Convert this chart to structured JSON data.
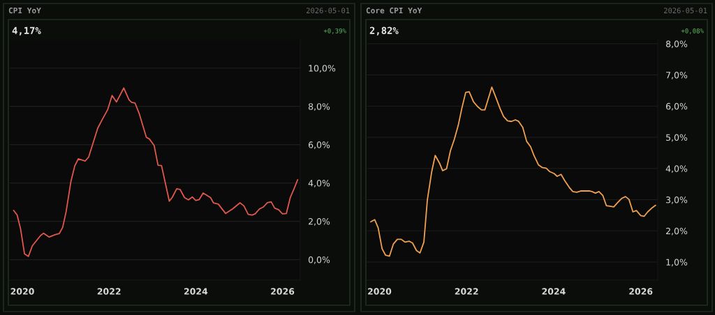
{
  "chart_data": [
    {
      "type": "line",
      "title": "CPI YoY",
      "annotations": [
        "2026-05-01",
        "4,17%",
        "+0,39%"
      ],
      "x": [
        2019.8,
        2019.88,
        2019.96,
        2020.05,
        2020.14,
        2020.23,
        2020.42,
        2020.49,
        2020.62,
        2020.75,
        2020.85,
        2020.93,
        2021.01,
        2021.12,
        2021.21,
        2021.29,
        2021.45,
        2021.53,
        2021.64,
        2021.74,
        2021.84,
        2021.97,
        2022.07,
        2022.17,
        2022.34,
        2022.46,
        2022.52,
        2022.6,
        2022.7,
        2022.86,
        2022.93,
        2023.04,
        2023.13,
        2023.21,
        2023.39,
        2023.46,
        2023.56,
        2023.64,
        2023.74,
        2023.83,
        2023.92,
        2024.0,
        2024.08,
        2024.17,
        2024.34,
        2024.41,
        2024.52,
        2024.69,
        2024.85,
        2025.02,
        2025.11,
        2025.21,
        2025.3,
        2025.37,
        2025.47,
        2025.56,
        2025.65,
        2025.74,
        2025.82,
        2025.91,
        2026.0,
        2026.09,
        2026.18,
        2026.26,
        2026.35
      ],
      "series": [
        {
          "color": "#e0584c",
          "values": [
            2.57,
            2.33,
            1.6,
            0.3,
            0.17,
            0.72,
            1.26,
            1.38,
            1.18,
            1.3,
            1.36,
            1.68,
            2.51,
            4.08,
            4.9,
            5.26,
            5.15,
            5.36,
            6.15,
            6.87,
            7.3,
            7.84,
            8.57,
            8.23,
            8.96,
            8.35,
            8.21,
            8.17,
            7.6,
            6.39,
            6.3,
            5.96,
            4.93,
            4.91,
            3.05,
            3.26,
            3.7,
            3.66,
            3.24,
            3.12,
            3.27,
            3.09,
            3.14,
            3.48,
            3.24,
            2.96,
            2.9,
            2.41,
            2.65,
            2.97,
            2.81,
            2.36,
            2.33,
            2.39,
            2.65,
            2.75,
            2.97,
            3.02,
            2.69,
            2.61,
            2.39,
            2.41,
            3.24,
            3.66,
            4.17
          ]
        }
      ],
      "xlim": [
        2019.71,
        2026.41
      ],
      "xticks": [
        2020,
        2022,
        2024,
        2026
      ],
      "ylim": [
        -1.07,
        11.48
      ],
      "yticks": [
        {
          "value": 0,
          "label": "0,0%"
        },
        {
          "value": 2,
          "label": "2,0%"
        },
        {
          "value": 4,
          "label": "4,0%"
        },
        {
          "value": 6,
          "label": "6,0%"
        },
        {
          "value": 8,
          "label": "8,0%"
        },
        {
          "value": 10,
          "label": "10,0%"
        }
      ],
      "grid": "y",
      "line_style": "solid",
      "marker": "none"
    },
    {
      "type": "line",
      "title": "Core CPI YoY",
      "annotations": [
        "2026-05-01",
        "2,82%",
        "+0,08%"
      ],
      "x": [
        2019.8,
        2019.89,
        2019.97,
        2020.06,
        2020.14,
        2020.23,
        2020.32,
        2020.41,
        2020.5,
        2020.59,
        2020.68,
        2020.76,
        2020.85,
        2020.93,
        2021.02,
        2021.1,
        2021.2,
        2021.28,
        2021.38,
        2021.45,
        2021.54,
        2021.63,
        2021.72,
        2021.81,
        2021.89,
        2021.98,
        2022.06,
        2022.16,
        2022.25,
        2022.34,
        2022.42,
        2022.58,
        2022.67,
        2022.77,
        2022.85,
        2022.94,
        2023.03,
        2023.12,
        2023.19,
        2023.29,
        2023.38,
        2023.47,
        2023.55,
        2023.65,
        2023.74,
        2023.83,
        2023.91,
        2024.01,
        2024.08,
        2024.17,
        2024.26,
        2024.36,
        2024.44,
        2024.53,
        2024.62,
        2024.83,
        2024.88,
        2024.96,
        2025.04,
        2025.13,
        2025.21,
        2025.29,
        2025.38,
        2025.47,
        2025.56,
        2025.65,
        2025.73,
        2025.82,
        2025.9,
        2026.0,
        2026.08,
        2026.16,
        2026.26,
        2026.34
      ],
      "series": [
        {
          "color": "#f0a04e",
          "values": [
            2.29,
            2.36,
            2.1,
            1.43,
            1.22,
            1.19,
            1.58,
            1.73,
            1.73,
            1.64,
            1.67,
            1.61,
            1.37,
            1.29,
            1.64,
            3.0,
            3.9,
            4.42,
            4.17,
            3.93,
            3.99,
            4.57,
            4.94,
            5.39,
            5.92,
            6.44,
            6.46,
            6.14,
            5.99,
            5.88,
            5.88,
            6.61,
            6.29,
            5.92,
            5.67,
            5.53,
            5.51,
            5.56,
            5.52,
            5.32,
            4.87,
            4.7,
            4.41,
            4.12,
            4.03,
            4.01,
            3.9,
            3.84,
            3.75,
            3.81,
            3.6,
            3.39,
            3.26,
            3.24,
            3.28,
            3.28,
            3.26,
            3.21,
            3.26,
            3.13,
            2.81,
            2.79,
            2.77,
            2.91,
            3.04,
            3.1,
            3.01,
            2.61,
            2.65,
            2.49,
            2.47,
            2.61,
            2.74,
            2.82
          ]
        }
      ],
      "xlim": [
        2019.72,
        2026.39
      ],
      "xticks": [
        2020,
        2022,
        2024,
        2026
      ],
      "ylim": [
        0.42,
        8.13
      ],
      "yticks": [
        {
          "value": 1,
          "label": "1,0%"
        },
        {
          "value": 2,
          "label": "2,0%"
        },
        {
          "value": 3,
          "label": "3,0%"
        },
        {
          "value": 4,
          "label": "4,0%"
        },
        {
          "value": 5,
          "label": "5,0%"
        },
        {
          "value": 6,
          "label": "6,0%"
        },
        {
          "value": 7,
          "label": "7,0%"
        },
        {
          "value": 8,
          "label": "8,0%"
        }
      ],
      "grid": "y",
      "line_style": "solid",
      "marker": "none"
    }
  ]
}
